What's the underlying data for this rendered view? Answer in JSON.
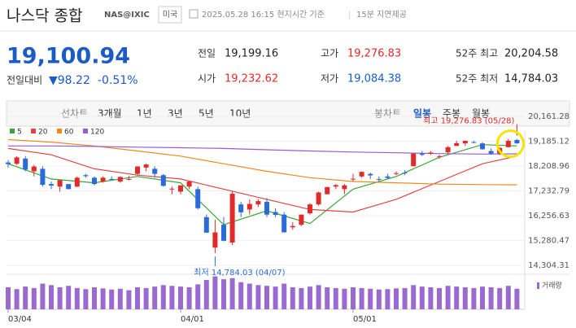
{
  "header": {
    "title": "나스닥 종합",
    "code": "NAS@IXIC",
    "market": "미국",
    "time": "2025.05.28 16:15 현지시간 기준",
    "delay": "15분 지연제공"
  },
  "quote": {
    "price": "19,100.94",
    "change_label": "전일대비",
    "change": "▼98.22",
    "change_pct": "-0.51%",
    "items": [
      {
        "label": "전일",
        "value": "19,199.16",
        "tone": "plain"
      },
      {
        "label": "고가",
        "value": "19,276.83",
        "tone": "up"
      },
      {
        "label": "52주 최고",
        "value": "20,204.58",
        "tone": "plain"
      },
      {
        "label": "시가",
        "value": "19,232.62",
        "tone": "up"
      },
      {
        "label": "저가",
        "value": "19,084.38",
        "tone": "down"
      },
      {
        "label": "52주 최저",
        "value": "14,784.03",
        "tone": "plain"
      }
    ]
  },
  "tabs": {
    "line_label": "선차트",
    "line": [
      "3개월",
      "1년",
      "3년",
      "5년",
      "10년"
    ],
    "candle_label": "봉차트",
    "candle": [
      "일봉",
      "주봉",
      "월봉"
    ],
    "selected": "일봉"
  },
  "chart": {
    "type": "candlestick",
    "ylim": [
      14304.31,
      20161.28
    ],
    "yticks": [
      {
        "value": 20161.28,
        "label": "20,161.28"
      },
      {
        "value": 19185.12,
        "label": "19,185.12"
      },
      {
        "value": 18208.96,
        "label": "18,208.96"
      },
      {
        "value": 17232.79,
        "label": "17,232.79"
      },
      {
        "value": 16256.63,
        "label": "16,256.63"
      },
      {
        "value": 15280.47,
        "label": "15,280.47"
      },
      {
        "value": 14304.31,
        "label": "14,304.31"
      }
    ],
    "xlabels": [
      {
        "label": "03/04",
        "index": 0
      },
      {
        "label": "04/01",
        "index": 20
      },
      {
        "label": "05/01",
        "index": 40
      }
    ],
    "up_color": "#e22a2a",
    "down_color": "#2a6ad9",
    "candles": [
      [
        18350,
        18450,
        18150,
        18285
      ],
      [
        18300,
        18600,
        18250,
        18550
      ],
      [
        18500,
        18600,
        18000,
        18070
      ],
      [
        18000,
        18250,
        17800,
        18190
      ],
      [
        18100,
        18200,
        17400,
        17470
      ],
      [
        17500,
        17600,
        17300,
        17440
      ],
      [
        17400,
        17650,
        17200,
        17650
      ],
      [
        17500,
        17500,
        17300,
        17300
      ],
      [
        17400,
        17800,
        17380,
        17750
      ],
      [
        17850,
        17900,
        17750,
        17810
      ],
      [
        17750,
        17800,
        17450,
        17500
      ],
      [
        17600,
        17800,
        17550,
        17750
      ],
      [
        17700,
        17800,
        17650,
        17690
      ],
      [
        17600,
        17800,
        17550,
        17780
      ],
      [
        17700,
        17820,
        17650,
        17700
      ],
      [
        17900,
        18200,
        17850,
        18190
      ],
      [
        18150,
        18300,
        18000,
        18270
      ],
      [
        18100,
        18200,
        17750,
        17900
      ],
      [
        17850,
        17900,
        17400,
        17430
      ],
      [
        17300,
        17400,
        17100,
        17320
      ],
      [
        17200,
        17450,
        17100,
        17450
      ],
      [
        17400,
        17600,
        17300,
        17600
      ],
      [
        17300,
        17400,
        16500,
        16550
      ],
      [
        16200,
        16300,
        15580,
        15590
      ],
      [
        15000,
        16100,
        14784.03,
        15600
      ],
      [
        15900,
        16200,
        15250,
        15270
      ],
      [
        15200,
        17200,
        15100,
        17120
      ],
      [
        16700,
        16800,
        16200,
        16390
      ],
      [
        16500,
        16900,
        16300,
        16720
      ],
      [
        16700,
        16900,
        16600,
        16830
      ],
      [
        16800,
        16950,
        16200,
        16300
      ],
      [
        16400,
        16550,
        16200,
        16290
      ],
      [
        16300,
        16400,
        15600,
        15600
      ],
      [
        15800,
        16000,
        15700,
        15850
      ],
      [
        15900,
        16300,
        15850,
        16300
      ],
      [
        16350,
        16750,
        16300,
        16700
      ],
      [
        16700,
        17200,
        16650,
        17170
      ],
      [
        17100,
        17400,
        17100,
        17380
      ],
      [
        17400,
        17500,
        17300,
        17460
      ],
      [
        17300,
        17500,
        17100,
        17450
      ],
      [
        17700,
        17900,
        17600,
        17710
      ],
      [
        17800,
        18000,
        17750,
        17980
      ],
      [
        17900,
        17950,
        17700,
        17840
      ],
      [
        17700,
        17800,
        17600,
        17690
      ],
      [
        17800,
        17900,
        17700,
        17740
      ],
      [
        17900,
        18000,
        17850,
        17930
      ],
      [
        17950,
        18050,
        17850,
        17930
      ],
      [
        18200,
        18700,
        18200,
        18700
      ],
      [
        18700,
        18800,
        18600,
        18650
      ],
      [
        18700,
        18800,
        18650,
        18740
      ],
      [
        18600,
        18650,
        18500,
        18600
      ],
      [
        18750,
        19000,
        18700,
        18950
      ],
      [
        19000,
        19200,
        19000,
        19110
      ],
      [
        19100,
        19200,
        19000,
        19200
      ],
      [
        19150,
        19200,
        19100,
        19140
      ],
      [
        19100,
        19150,
        18850,
        18870
      ],
      [
        18800,
        18900,
        18650,
        18700
      ],
      [
        18700,
        18950,
        18650,
        18925
      ],
      [
        18950,
        19276.83,
        18950,
        19199.16
      ],
      [
        19232.62,
        19276.83,
        19084.38,
        19100.94
      ]
    ],
    "ma_x": [
      0,
      5,
      10,
      15,
      20,
      25,
      30,
      35,
      40,
      45,
      50,
      55,
      59
    ],
    "ma": [
      {
        "name": "5",
        "color": "#3aa63a",
        "values": [
          18300,
          17700,
          17550,
          17800,
          17550,
          15900,
          16450,
          15950,
          17300,
          17800,
          18550,
          19050,
          19000
        ]
      },
      {
        "name": "20",
        "color": "#e04545",
        "values": [
          18900,
          18650,
          18100,
          17850,
          17700,
          17300,
          16900,
          16500,
          16400,
          16900,
          17600,
          18300,
          18600
        ]
      },
      {
        "name": "60",
        "color": "#f08a1c",
        "values": [
          19250,
          19150,
          19000,
          18800,
          18600,
          18300,
          18000,
          17750,
          17600,
          17550,
          17500,
          17480,
          17470
        ]
      },
      {
        "name": "120",
        "color": "#9a5bd0",
        "values": [
          19000,
          19000,
          18980,
          18950,
          18930,
          18900,
          18850,
          18800,
          18760,
          18730,
          18700,
          18680,
          18690
        ]
      }
    ],
    "high_note": "최고 19,276.83 (05/28)",
    "high_index": 59,
    "high_value": 19276.83,
    "low_note": "최저 14,784.03 (04/07)",
    "low_index": 24,
    "low_value": 14784.03,
    "volume_label": "거래량",
    "volume_color": "#9a6ad0",
    "volume": [
      60,
      55,
      62,
      58,
      70,
      66,
      60,
      64,
      58,
      55,
      60,
      57,
      54,
      56,
      52,
      60,
      58,
      62,
      66,
      64,
      62,
      60,
      68,
      80,
      90,
      82,
      85,
      74,
      70,
      66,
      64,
      62,
      70,
      60,
      58,
      62,
      66,
      60,
      58,
      56,
      60,
      58,
      56,
      54,
      55,
      57,
      58,
      66,
      62,
      60,
      58,
      64,
      62,
      60,
      58,
      62,
      60,
      58,
      64,
      56
    ]
  }
}
